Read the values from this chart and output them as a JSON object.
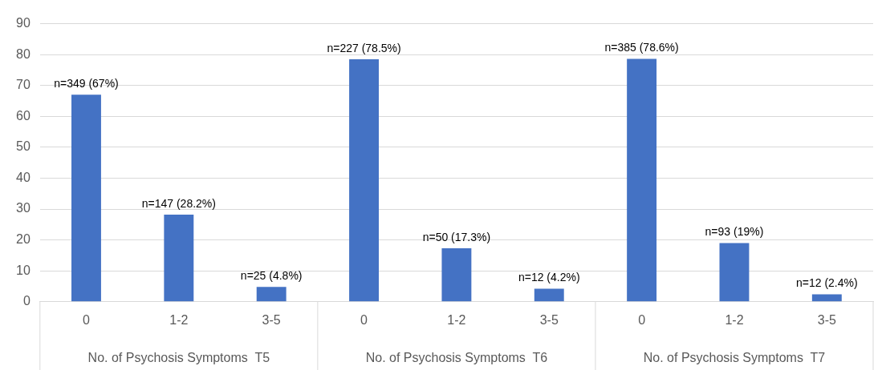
{
  "chart_data": {
    "type": "bar",
    "categories": [
      "0",
      "1-2",
      "3-5",
      "0",
      "1-2",
      "3-5",
      "0",
      "1-2",
      "3-5"
    ],
    "values": [
      67,
      28.2,
      4.8,
      78.5,
      17.3,
      4.2,
      78.6,
      19,
      2.4
    ],
    "value_labels": [
      "n=349 (67%)",
      "n=147 (28.2%)",
      "n=25 (4.8%)",
      "n=227 (78.5%)",
      "n=50 (17.3%)",
      "n=12 (4.2%)",
      "n=385 (78.6%)",
      "n=93 (19%)",
      "n=12 (2.4%)"
    ],
    "color": "#4472c4",
    "ylim": [
      0,
      90
    ],
    "yticks": [
      0,
      10,
      20,
      30,
      40,
      50,
      60,
      70,
      80,
      90
    ],
    "grid": "y",
    "annotations": [
      "No. of Psychosis Symptoms  T5",
      "No. of Psychosis Symptoms  T6",
      "No. of Psychosis Symptoms  T7"
    ]
  }
}
